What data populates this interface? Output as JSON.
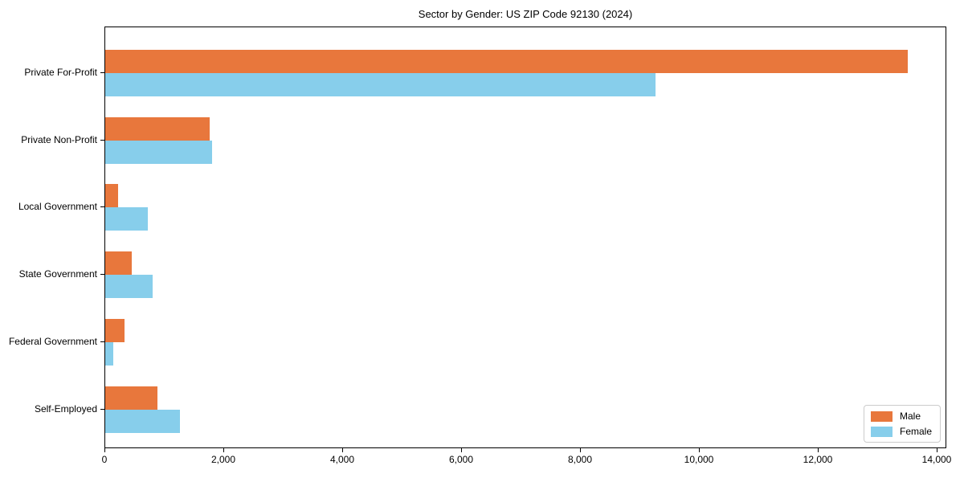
{
  "title": "Sector by Gender: US ZIP Code 92130 (2024)",
  "chart_data": {
    "type": "bar",
    "orientation": "horizontal",
    "title": "Sector by Gender: US ZIP Code 92130 (2024)",
    "categories": [
      "Private For-Profit",
      "Private Non-Profit",
      "Local Government",
      "State Government",
      "Federal Government",
      "Self-Employed"
    ],
    "series": [
      {
        "name": "Male",
        "color": "#E8773C",
        "values": [
          13500,
          1750,
          220,
          450,
          325,
          875
        ]
      },
      {
        "name": "Female",
        "color": "#87CEEB",
        "values": [
          9250,
          1800,
          720,
          800,
          130,
          1250
        ]
      }
    ],
    "xlabel": "",
    "ylabel": "",
    "xlim": [
      0,
      14135
    ],
    "x_ticks": [
      0,
      2000,
      4000,
      6000,
      8000,
      10000,
      12000,
      14000
    ],
    "x_tick_labels": [
      "0",
      "2,000",
      "4,000",
      "6,000",
      "8,000",
      "10,000",
      "12,000",
      "14,000"
    ],
    "grid": false,
    "legend_position": "lower right",
    "plot_border_color": "#000000",
    "background_color": "#ffffff"
  },
  "legend": {
    "items": [
      {
        "label": "Male",
        "color": "#E8773C"
      },
      {
        "label": "Female",
        "color": "#87CEEB"
      }
    ]
  }
}
